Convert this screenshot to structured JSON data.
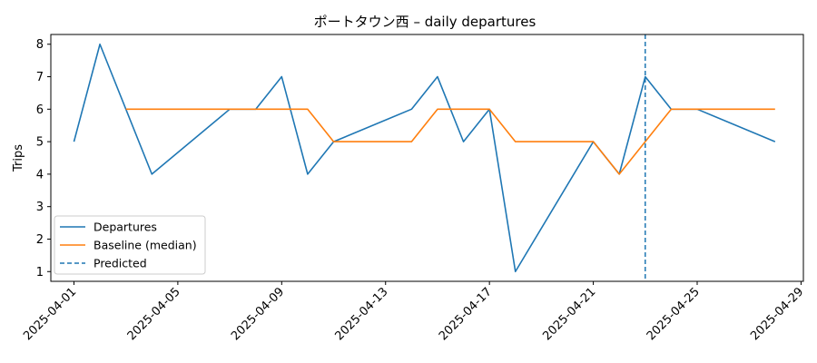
{
  "chart_data": {
    "type": "line",
    "title": "ポートタウン西 – daily departures",
    "xlabel": "",
    "ylabel": "Trips",
    "x_range": [
      "2025-04-01",
      "2025-04-29"
    ],
    "ylim": [
      0.7,
      8.3
    ],
    "yticks": [
      1,
      2,
      3,
      4,
      5,
      6,
      7,
      8
    ],
    "xticks": [
      "2025-04-01",
      "2025-04-05",
      "2025-04-09",
      "2025-04-13",
      "2025-04-17",
      "2025-04-21",
      "2025-04-25",
      "2025-04-29"
    ],
    "grid": false,
    "legend_position": "lower-left",
    "series": [
      {
        "name": "Departures",
        "color": "#1f77b4",
        "style": "solid",
        "points": [
          {
            "x": "2025-04-01",
            "y": 5
          },
          {
            "x": "2025-04-02",
            "y": 8
          },
          {
            "x": "2025-04-04",
            "y": 4
          },
          {
            "x": "2025-04-07",
            "y": 6
          },
          {
            "x": "2025-04-08",
            "y": 6
          },
          {
            "x": "2025-04-09",
            "y": 7
          },
          {
            "x": "2025-04-10",
            "y": 4
          },
          {
            "x": "2025-04-11",
            "y": 5
          },
          {
            "x": "2025-04-14",
            "y": 6
          },
          {
            "x": "2025-04-15",
            "y": 7
          },
          {
            "x": "2025-04-16",
            "y": 5
          },
          {
            "x": "2025-04-17",
            "y": 6
          },
          {
            "x": "2025-04-18",
            "y": 1
          },
          {
            "x": "2025-04-21",
            "y": 5
          },
          {
            "x": "2025-04-22",
            "y": 4
          },
          {
            "x": "2025-04-23",
            "y": 7
          },
          {
            "x": "2025-04-24",
            "y": 6
          },
          {
            "x": "2025-04-25",
            "y": 6
          },
          {
            "x": "2025-04-28",
            "y": 5
          }
        ]
      },
      {
        "name": "Baseline (median)",
        "color": "#ff7f0e",
        "style": "solid",
        "points": [
          {
            "x": "2025-04-03",
            "y": 6
          },
          {
            "x": "2025-04-10",
            "y": 6
          },
          {
            "x": "2025-04-11",
            "y": 5
          },
          {
            "x": "2025-04-14",
            "y": 5
          },
          {
            "x": "2025-04-15",
            "y": 6
          },
          {
            "x": "2025-04-17",
            "y": 6
          },
          {
            "x": "2025-04-18",
            "y": 5
          },
          {
            "x": "2025-04-21",
            "y": 5
          },
          {
            "x": "2025-04-22",
            "y": 4
          },
          {
            "x": "2025-04-24",
            "y": 6
          },
          {
            "x": "2025-04-28",
            "y": 6
          }
        ]
      }
    ],
    "vlines": [
      {
        "name": "Predicted",
        "x": "2025-04-23",
        "color": "#1f77b4",
        "style": "dashed"
      }
    ]
  }
}
